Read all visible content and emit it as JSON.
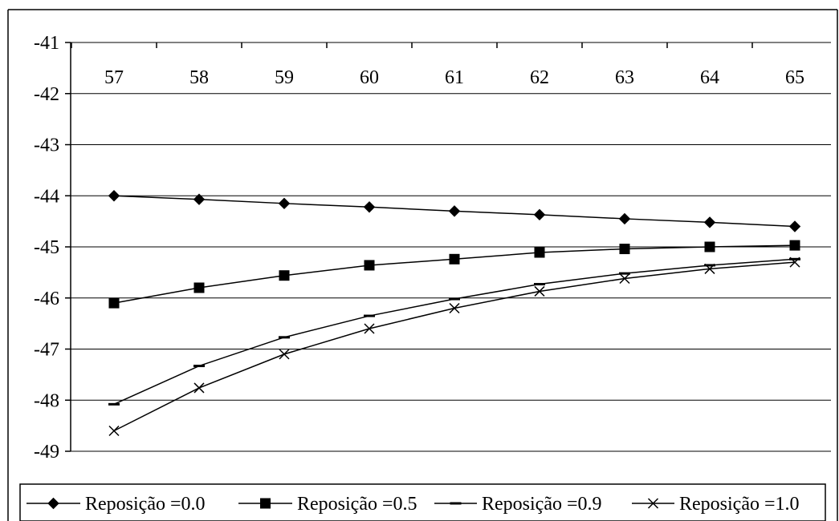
{
  "chart_data": {
    "type": "line",
    "title": "",
    "xlabel": "",
    "ylabel": "",
    "x": [
      57,
      58,
      59,
      60,
      61,
      62,
      63,
      64,
      65
    ],
    "x_tick_labels": [
      "57",
      "58",
      "59",
      "60",
      "61",
      "62",
      "63",
      "64",
      "65"
    ],
    "x_axis_position": "top",
    "ylim": [
      -49,
      -41
    ],
    "y_ticks": [
      -41,
      -42,
      -43,
      -44,
      -45,
      -46,
      -47,
      -48,
      -49
    ],
    "y_tick_labels": [
      "-41",
      "-42",
      "-43",
      "-44",
      "-45",
      "-46",
      "-47",
      "-48",
      "-49"
    ],
    "grid": "horizontal",
    "legend": "bottom",
    "series": [
      {
        "name": "Reposição =0.0",
        "marker": "diamond",
        "values": [
          -44.0,
          -44.07,
          -44.15,
          -44.22,
          -44.3,
          -44.37,
          -44.45,
          -44.52,
          -44.6
        ]
      },
      {
        "name": "Reposição =0.5",
        "marker": "square",
        "values": [
          -46.1,
          -45.8,
          -45.56,
          -45.36,
          -45.24,
          -45.11,
          -45.04,
          -45.0,
          -44.97
        ]
      },
      {
        "name": "Reposição =0.9",
        "marker": "dash",
        "values": [
          -48.08,
          -47.33,
          -46.77,
          -46.35,
          -46.02,
          -45.73,
          -45.52,
          -45.36,
          -45.24
        ]
      },
      {
        "name": "Reposição =1.0",
        "marker": "x",
        "values": [
          -48.6,
          -47.76,
          -47.1,
          -46.6,
          -46.2,
          -45.87,
          -45.62,
          -45.43,
          -45.3
        ]
      }
    ]
  }
}
